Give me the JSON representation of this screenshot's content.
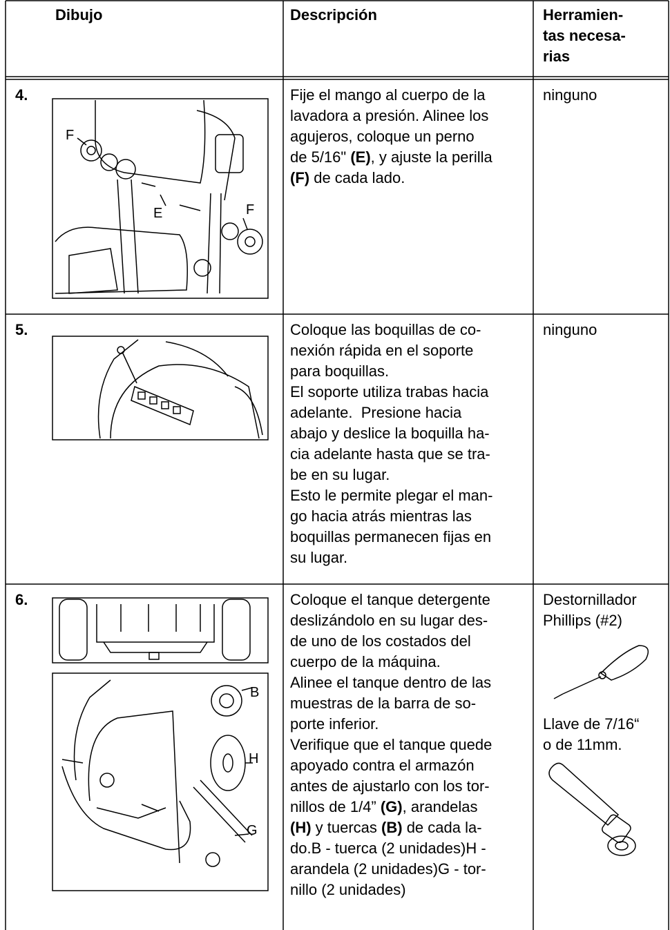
{
  "table": {
    "header": [
      "Dibujo",
      "Descripción",
      [
        "Herramien-",
        "tas necesa-",
        "rias"
      ]
    ],
    "rows": [
      {
        "number": "4.",
        "labels": [
          "F",
          "E",
          "F"
        ],
        "description": [
          "Fije el mango al cuerpo de la",
          "lavadora a presión. Alinee los",
          "agujeros, coloque un perno",
          [
            "de 5/16\" ",
            "(E)",
            ", y ajuste la perilla"
          ],
          [
            "(F)",
            " de cada lado."
          ]
        ],
        "tools": [
          [
            "ninguno"
          ]
        ]
      },
      {
        "number": "5.",
        "description": [
          "Coloque las boquillas de co-",
          "nexión rápida en el soporte",
          "para boquillas.",
          "El soporte utiliza trabas hacia",
          "adelante.  Presione hacia",
          "abajo y deslice la boquilla ha-",
          "cia adelante hasta que se tra-",
          "be en su lugar.",
          "Esto le permite plegar el man-",
          "go hacia atrás mientras las",
          "boquillas permanecen fijas en",
          "su lugar."
        ],
        "tools": [
          [
            "ninguno"
          ]
        ]
      },
      {
        "number": "6.",
        "labels": [
          "B",
          "H",
          "G"
        ],
        "description": [
          "Coloque el tanque detergente",
          "deslizándolo en su lugar des-",
          "de uno de los costados del",
          "cuerpo de la máquina.",
          "Alinee el tanque dentro de las",
          "muestras de la barra de so-",
          "porte inferior.",
          "Verifique que el tanque quede",
          "apoyado contra el armazón",
          "antes de ajustarlo con los tor-",
          [
            "nillos de 1/4” ",
            "(G)",
            ", arandelas"
          ],
          [
            "(H)",
            " y tuercas ",
            "(B)",
            " de cada la-"
          ],
          "do.B - tuerca (2 unidades)H -",
          "arandela (2 unidades)G - tor-",
          "nillo (2 unidades)"
        ],
        "tools": [
          [
            "Destornillador",
            "Phillips (#2)"
          ],
          [
            "Llave de 7/16“",
            "o de 11mm."
          ]
        ]
      }
    ]
  }
}
